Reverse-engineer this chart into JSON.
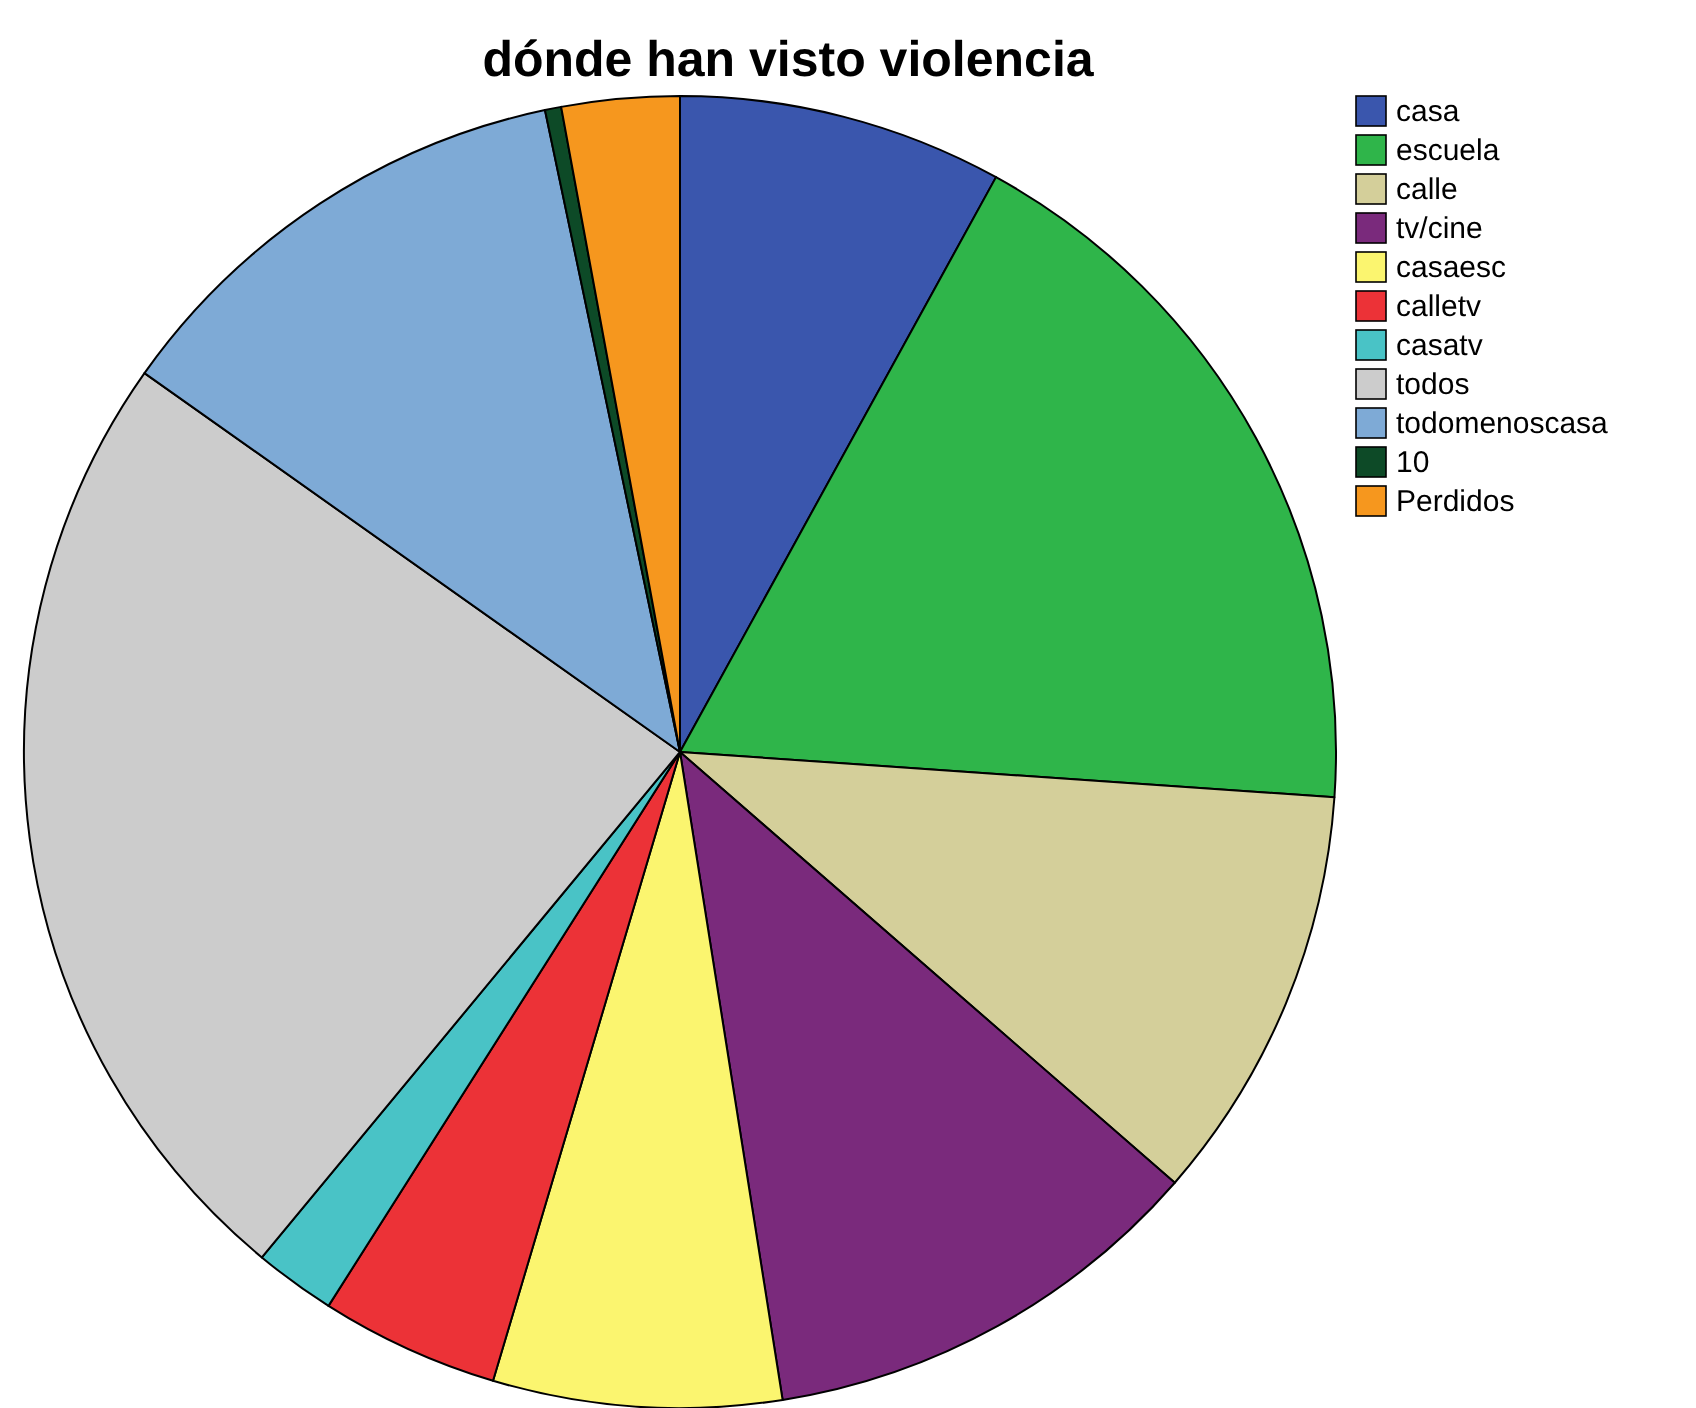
{
  "chart_data": {
    "type": "pie",
    "title": "dónde han visto violencia",
    "categories": [
      "casa",
      "escuela",
      "calle",
      "tv/cine",
      "casaesc",
      "calletv",
      "casatv",
      "todos",
      "todomenoscasa",
      "10",
      "Perdidos"
    ],
    "values": [
      8.0,
      18.1,
      10.3,
      11.1,
      7.1,
      4.4,
      2.0,
      23.8,
      11.9,
      0.4,
      2.9
    ],
    "colors": [
      "#3a56ad",
      "#2fb54a",
      "#d4cf9a",
      "#7a2a7c",
      "#fbf56f",
      "#ec3237",
      "#49c3c6",
      "#cccccc",
      "#7eaad6",
      "#0d4a27",
      "#f6971e"
    ],
    "legend": "top right"
  }
}
